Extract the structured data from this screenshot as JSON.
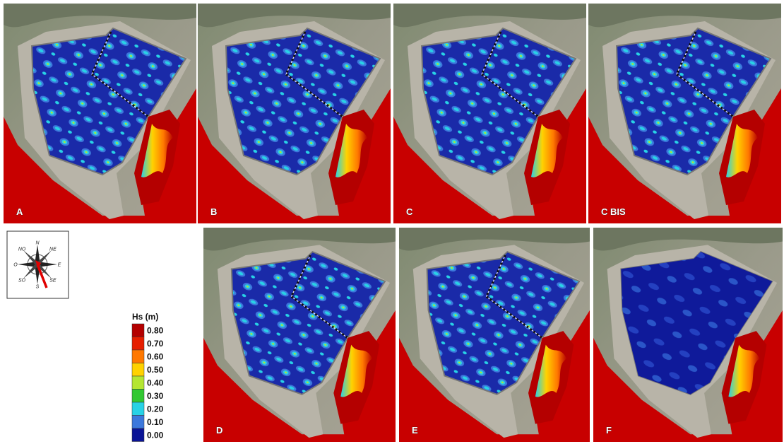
{
  "panels": [
    {
      "label": "A"
    },
    {
      "label": "B"
    },
    {
      "label": "C"
    },
    {
      "label": "C BIS"
    },
    {
      "label": "D"
    },
    {
      "label": "E"
    },
    {
      "label": "F"
    }
  ],
  "compass": {
    "labels": [
      "N",
      "NE",
      "E",
      "SE",
      "S",
      "SO",
      "O",
      "NO"
    ]
  },
  "legend": {
    "title": "Hs (m)",
    "entries": [
      {
        "label": "0.80",
        "color": "#b40000"
      },
      {
        "label": "0.70",
        "color": "#e61e00"
      },
      {
        "label": "0.60",
        "color": "#ff7800"
      },
      {
        "label": "0.50",
        "color": "#ffd200"
      },
      {
        "label": "0.40",
        "color": "#b4e632"
      },
      {
        "label": "0.30",
        "color": "#32c832"
      },
      {
        "label": "0.20",
        "color": "#28d2e6"
      },
      {
        "label": "0.10",
        "color": "#3c78dc"
      },
      {
        "label": "0.00",
        "color": "#0a1496"
      }
    ]
  }
}
